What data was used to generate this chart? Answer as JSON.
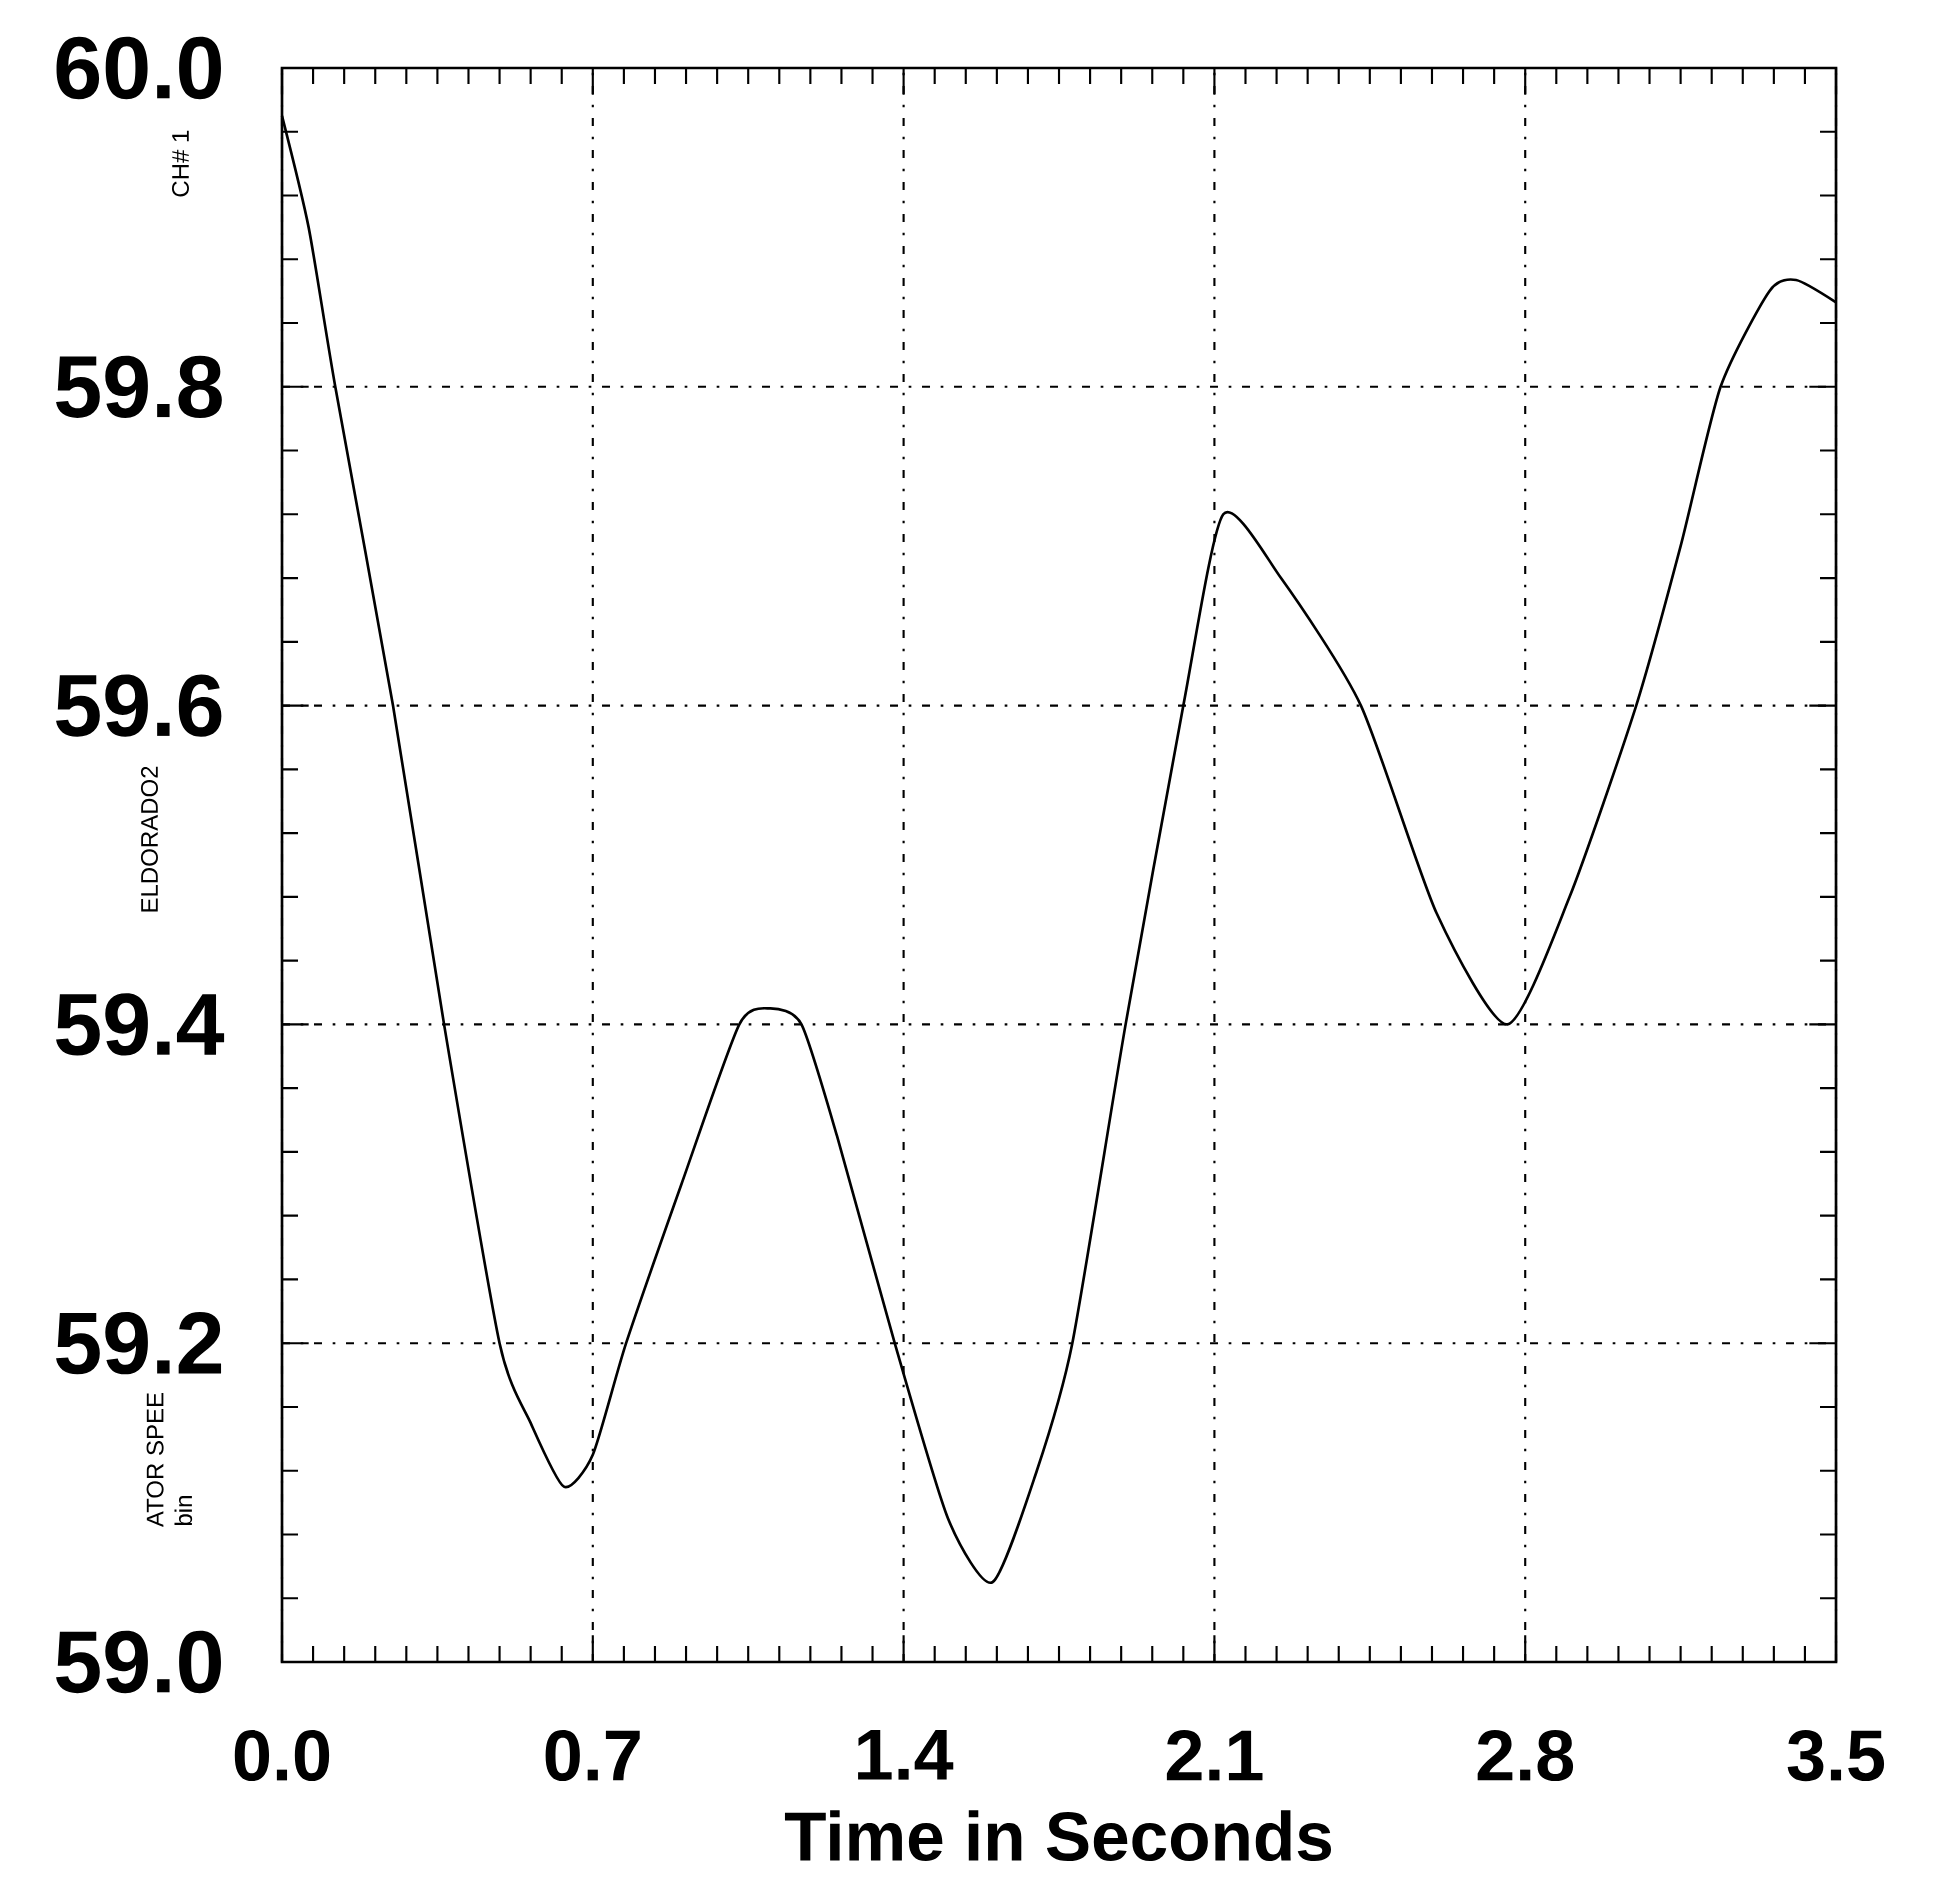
{
  "chart_data": {
    "type": "line",
    "xlabel": "Time in Seconds",
    "annotations": [
      "CH# 1",
      "ELDORADO2",
      "ATOR SPEE",
      "bin"
    ],
    "xlim": [
      0,
      3.5
    ],
    "ylim": [
      59.0,
      60.0
    ],
    "xticks": [
      {
        "value": 0,
        "label": "0.0"
      },
      0.7,
      1.4,
      2.1,
      2.8,
      3.5
    ],
    "yticks": [
      {
        "value": 59.0,
        "label": "59.0"
      },
      59.2,
      59.4,
      59.6,
      59.8,
      {
        "value": 60.0,
        "label": "60.0"
      }
    ],
    "grid": true,
    "line_style": "solid",
    "series": [
      {
        "color": "#000000",
        "x": [
          0,
          0.06,
          0.12,
          0.25,
          0.365,
          0.49,
          0.56,
          0.635,
          0.7,
          0.775,
          0.9,
          1.03,
          1.1,
          1.17,
          1.25,
          1.38,
          1.5,
          1.6,
          1.7,
          1.78,
          1.9,
          2.03,
          2.12,
          2.25,
          2.43,
          2.6,
          2.76,
          2.9,
          3.05,
          3.15,
          3.24,
          3.35,
          3.41,
          3.5
        ],
        "values": [
          59.97,
          59.9,
          59.8,
          59.6,
          59.4,
          59.2,
          59.15,
          59.11,
          59.13,
          59.2,
          59.3,
          59.4,
          59.41,
          59.4,
          59.33,
          59.2,
          59.09,
          59.05,
          59.12,
          59.2,
          59.4,
          59.6,
          59.72,
          59.68,
          59.6,
          59.47,
          59.4,
          59.48,
          59.6,
          59.7,
          59.8,
          59.86,
          59.867,
          59.853
        ]
      }
    ]
  }
}
